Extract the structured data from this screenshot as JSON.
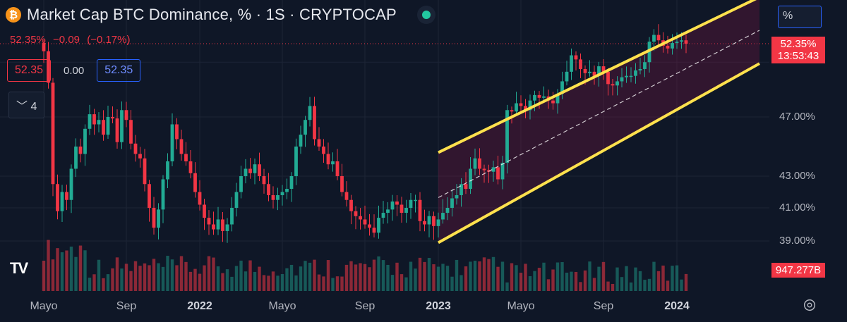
{
  "header": {
    "title": "Market Cap BTC Dominance, % · 1S · CRYPTOCAP",
    "coin_icon": "bitcoin-icon",
    "price": "52.35%",
    "change": "−0.09",
    "change_pct": "(−0.17%)"
  },
  "indicator": {
    "left_value": "52.35",
    "middle_value": "0.00",
    "right_value": "52.35",
    "collapse_label": "4"
  },
  "scale": {
    "mode_label": "%"
  },
  "price_tag": {
    "price": "52.35%",
    "countdown": "13:53:43"
  },
  "volume_tag": {
    "value": "947.277B"
  },
  "colors": {
    "up": "#22ab94",
    "down": "#f23645",
    "channel": "#ffe14d",
    "background": "#0f1727"
  },
  "chart_data": {
    "type": "candlestick",
    "title": "Market Cap BTC Dominance, % · 1S · CRYPTOCAP",
    "y_axis_labels": [
      "47.00%",
      "43.00%",
      "41.00%",
      "39.00%"
    ],
    "y_ticks": [
      47,
      43,
      41,
      39
    ],
    "x_axis_labels": [
      {
        "label": "Mayo",
        "bold": false,
        "week": 0
      },
      {
        "label": "Sep",
        "bold": false,
        "week": 18
      },
      {
        "label": "2022",
        "bold": true,
        "week": 34
      },
      {
        "label": "Mayo",
        "bold": false,
        "week": 52
      },
      {
        "label": "Sep",
        "bold": false,
        "week": 70
      },
      {
        "label": "2023",
        "bold": true,
        "week": 86
      },
      {
        "label": "Mayo",
        "bold": false,
        "week": 104
      },
      {
        "label": "Sep",
        "bold": false,
        "week": 122
      },
      {
        "label": "2024",
        "bold": true,
        "week": 138
      }
    ],
    "close_series": [
      51.8,
      49.5,
      42.5,
      40.8,
      42,
      41.5,
      43.5,
      45,
      44.5,
      46.2,
      47.2,
      46.5,
      46.8,
      45.8,
      47.0,
      46.9,
      45.3,
      47.5,
      46.8,
      45.2,
      44.5,
      44.2,
      42.5,
      41.0,
      39.8,
      40.9,
      42.8,
      44.0,
      46.5,
      45.5,
      44.5,
      44.0,
      43.2,
      42.0,
      41.2,
      40.4,
      40.0,
      39.7,
      40.3,
      39.6,
      40.0,
      41.0,
      42.0,
      43.0,
      43.5,
      43.2,
      43.8,
      43.0,
      42.5,
      41.8,
      41.5,
      41.8,
      42.0,
      42.2,
      43.0,
      45.0,
      45.8,
      46.8,
      47.8,
      45.5,
      45.0,
      44.5,
      43.8,
      44.0,
      43.0,
      42.0,
      41.5,
      40.8,
      40.5,
      40.3,
      40.0,
      39.8,
      39.5,
      40.4,
      40.7,
      40.9,
      41.4,
      41.2,
      40.7,
      41.0,
      41.5,
      41.5,
      40.2,
      40.0,
      40.5,
      39.9,
      40.3,
      40.7,
      41.0,
      41.6,
      41.8,
      42.5,
      42.2,
      43.5,
      44.2,
      43.5,
      43.4,
      43.3,
      43.6,
      42.8,
      43.9,
      47.5,
      47.4,
      48.0,
      47.8,
      47.5,
      48.2,
      48.6,
      48.4,
      48.5,
      48.2,
      48.0,
      48.7,
      49.6,
      50.3,
      51.5,
      51.2,
      50.5,
      50.2,
      50.3,
      50.0,
      50.7,
      50.3,
      49.4,
      49.3,
      49.6,
      49.9,
      50.0,
      50.0,
      50.4,
      50.5,
      51.0,
      52.5,
      53.0,
      52.6,
      52.2,
      52.0,
      52.4,
      52.5,
      52.6,
      52.35
    ],
    "channel": {
      "upper_start": [
        86,
        44.6
      ],
      "upper_end": [
        156,
        55.8
      ],
      "lower_start": [
        86,
        38.9
      ],
      "lower_end": [
        156,
        50.9
      ]
    },
    "last_price": 52.35,
    "volume_last": "947.277B"
  }
}
